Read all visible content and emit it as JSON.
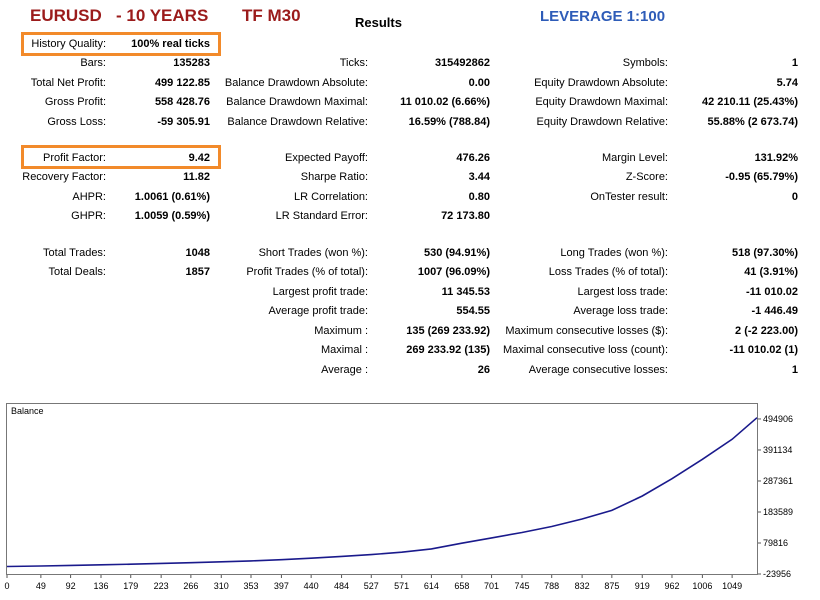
{
  "header": {
    "symbol": "EURUSD",
    "period": "- 10 YEARS",
    "timeframe": "TF M30",
    "results": "Results",
    "leverage": "LEVERAGE   1:100"
  },
  "col1": [
    {
      "label": "History Quality:",
      "value": "100% real ticks"
    },
    {
      "label": "Bars:",
      "value": "135283"
    },
    {
      "label": "Total Net Profit:",
      "value": "499 122.85"
    },
    {
      "label": "Gross Profit:",
      "value": "558 428.76"
    },
    {
      "label": "Gross Loss:",
      "value": "-59 305.91"
    },
    {
      "label": "Profit Factor:",
      "value": "9.42"
    },
    {
      "label": "Recovery Factor:",
      "value": "11.82"
    },
    {
      "label": "AHPR:",
      "value": "1.0061 (0.61%)"
    },
    {
      "label": "GHPR:",
      "value": "1.0059 (0.59%)"
    },
    {
      "label": "Total Trades:",
      "value": "1048"
    },
    {
      "label": "Total Deals:",
      "value": "1857"
    }
  ],
  "col2": [
    {
      "label": "Ticks:",
      "value": "315492862"
    },
    {
      "label": "Balance Drawdown Absolute:",
      "value": "0.00"
    },
    {
      "label": "Balance Drawdown Maximal:",
      "value": "11 010.02 (6.66%)"
    },
    {
      "label": "Balance Drawdown Relative:",
      "value": "16.59% (788.84)"
    },
    {
      "label": "Expected Payoff:",
      "value": "476.26"
    },
    {
      "label": "Sharpe Ratio:",
      "value": "3.44"
    },
    {
      "label": "LR Correlation:",
      "value": "0.80"
    },
    {
      "label": "LR Standard Error:",
      "value": "72 173.80"
    },
    {
      "label": "Short Trades (won %):",
      "value": "530 (94.91%)"
    },
    {
      "label": "Profit Trades (% of total):",
      "value": "1007 (96.09%)"
    },
    {
      "label": "Largest profit trade:",
      "value": "11 345.53"
    },
    {
      "label": "Average profit trade:",
      "value": "554.55"
    },
    {
      "label": "Maximum :",
      "value": "135 (269 233.92)"
    },
    {
      "label": "Maximal :",
      "value": "269 233.92 (135)"
    },
    {
      "label": "Average :",
      "value": "26"
    }
  ],
  "col3": [
    {
      "label": "Symbols:",
      "value": "1"
    },
    {
      "label": "Equity Drawdown Absolute:",
      "value": "5.74"
    },
    {
      "label": "Equity Drawdown Maximal:",
      "value": "42 210.11 (25.43%)"
    },
    {
      "label": "Equity Drawdown Relative:",
      "value": "55.88% (2 673.74)"
    },
    {
      "label": "Margin Level:",
      "value": "131.92%"
    },
    {
      "label": "Z-Score:",
      "value": "-0.95 (65.79%)"
    },
    {
      "label": "OnTester result:",
      "value": "0"
    },
    {
      "label": "Long Trades (won %):",
      "value": "518 (97.30%)"
    },
    {
      "label": "Loss Trades (% of total):",
      "value": "41 (3.91%)"
    },
    {
      "label": "Largest loss trade:",
      "value": "-11 010.02"
    },
    {
      "label": "Average loss trade:",
      "value": "-1 446.49"
    },
    {
      "label": "Maximum consecutive losses ($):",
      "value": "2 (-2 223.00)"
    },
    {
      "label": "Maximal consecutive loss (count):",
      "value": "-11 010.02 (1)"
    },
    {
      "label": "Average consecutive losses:",
      "value": "1"
    }
  ],
  "colors": {
    "title_red": "#9b1b1b",
    "leverage_blue": "#2e5cb8",
    "highlight_orange": "#f28a2a",
    "balance_line": "#1a1a8c"
  },
  "chart_data": {
    "type": "line",
    "title": "Balance",
    "xlabel": "",
    "ylabel": "",
    "x_ticks": [
      0,
      49,
      92,
      136,
      179,
      223,
      266,
      310,
      353,
      397,
      440,
      484,
      527,
      571,
      614,
      658,
      701,
      745,
      788,
      832,
      875,
      919,
      962,
      1006,
      1049
    ],
    "y_ticks": [
      -23956,
      79816,
      183589,
      287361,
      391134,
      494906
    ],
    "xlim": [
      0,
      1085
    ],
    "ylim": [
      -23956,
      545000
    ],
    "series": [
      {
        "x": [
          0,
          49,
          92,
          136,
          179,
          223,
          266,
          310,
          353,
          397,
          440,
          484,
          527,
          571,
          614,
          658,
          701,
          745,
          788,
          832,
          875,
          919,
          962,
          1006,
          1049,
          1085
        ],
        "values": [
          1000,
          2800,
          4700,
          6800,
          9000,
          11400,
          14000,
          17000,
          20000,
          24000,
          29000,
          35000,
          41000,
          49000,
          60000,
          79000,
          97000,
          115000,
          135000,
          160000,
          189000,
          237000,
          295000,
          360000,
          427000,
          499123
        ]
      }
    ]
  }
}
